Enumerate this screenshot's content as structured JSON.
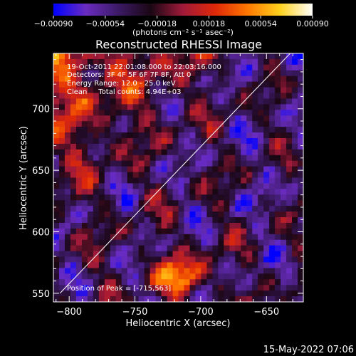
{
  "chart_data": {
    "type": "heatmap",
    "title": "Reconstructed RHESSI Image",
    "xlabel": "Heliocentric X (arcsec)",
    "ylabel": "Heliocentric Y (arcsec)",
    "xlim": [
      -812,
      -622
    ],
    "ylim": [
      543,
      745
    ],
    "x_ticks": [
      -800,
      -750,
      -700,
      -650
    ],
    "y_ticks": [
      550,
      600,
      650,
      700
    ],
    "x_tick_labels": [
      "−800",
      "−750",
      "−700",
      "−650"
    ],
    "y_tick_labels": [
      "550",
      "600",
      "650",
      "700"
    ],
    "colorbar": {
      "range": [
        -0.0009,
        0.0009
      ],
      "ticks": [
        -0.0009,
        -0.00054,
        -0.00018,
        0.00018,
        0.00054,
        0.0009
      ],
      "tick_labels": [
        "−0.00090",
        "−0.00054",
        "−0.00018",
        "0.00018",
        "0.00054",
        "0.00090"
      ],
      "label": "(photons cm⁻² s⁻¹ asec⁻²)"
    },
    "colormap_stops": [
      "#0000ff",
      "#6a2cc0",
      "#3c1a66",
      "#1a0714",
      "#a01a3a",
      "#e02808",
      "#ff7800",
      "#ffd21e",
      "#ffffff"
    ],
    "annotations": {
      "time": "19-Oct-2011 22:01:08.000 to 22:03:16.000",
      "detectors": "Detectors: 3F 4F 5F 6F 7F 8F, Att 0",
      "energy": "Energy Range: 12.0 - 25.0 keV",
      "clean": "Clean     Total counts: 4.94E+03",
      "peak": "Position of Peak = [-715,563]"
    },
    "limb_line": [
      [
        -807,
        550
      ],
      [
        -632,
        745
      ]
    ],
    "peak_position": [
      -715,
      563
    ],
    "footer_date": "15-May-2022 07:06"
  }
}
